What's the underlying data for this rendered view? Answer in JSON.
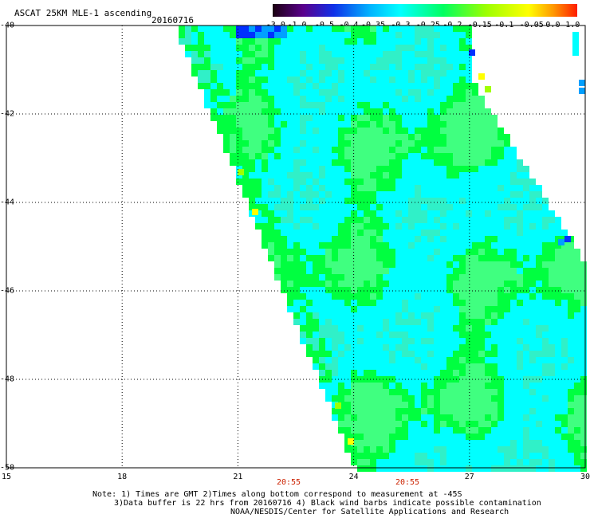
{
  "header": {
    "title": "ASCAT 25KM MLE-1 ascending",
    "date": "20160716"
  },
  "colorbar": {
    "labels": [
      "-3.0",
      "-1.0",
      "-0.5",
      "-0.4",
      "-0.35",
      "-0.3",
      "-0.25",
      "-0.2",
      "-0.15",
      "-0.1",
      "-0.05",
      "0.0",
      "1.0"
    ],
    "colors": [
      "#1a0010",
      "#5a008c",
      "#1030e8",
      "#00b4ff",
      "#00ffff",
      "#00ff60",
      "#9cff00",
      "#ffff00",
      "#ff9a00",
      "#ff1c00"
    ]
  },
  "map": {
    "lat_labels": [
      "-40",
      "-42",
      "-44",
      "-46",
      "-48",
      "-50"
    ],
    "lon_labels": [
      "15",
      "18",
      "21",
      "24",
      "27",
      "30"
    ],
    "time_labels": [
      "20:55",
      "20:55"
    ],
    "grid": true,
    "swath_colors": {
      "cyan": "#00ffff",
      "green": "#00ff40",
      "lightgreen": "#40ff80",
      "lime": "#a0ff00",
      "yellow": "#ffff00",
      "blue": "#00a0ff",
      "darkblue": "#0030ff"
    }
  },
  "note": {
    "line1": "Note: 1) Times are GMT 2)Times along bottom correspond to measurement at -45S",
    "line2": "3)Data buffer is 22 hrs from 20160716 4) Black wind barbs indicate possible contamination",
    "line3": "NOAA/NESDIS/Center for Satellite Applications and Research"
  }
}
